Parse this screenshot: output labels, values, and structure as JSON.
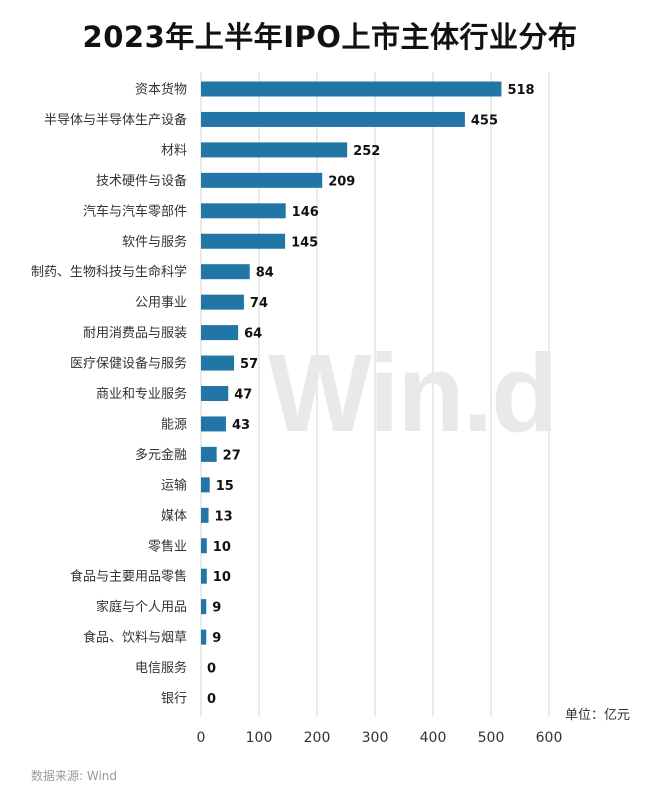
{
  "title": "2023年上半年IPO上市主体行业分布",
  "unit": "单位：亿元",
  "source": "数据来源: Wind",
  "watermark": "Win.d",
  "colors": {
    "bar": "#2276a6",
    "grid": "#d6d6d6",
    "label": "#333333",
    "value": "#111111"
  },
  "chart_data": {
    "type": "bar",
    "orientation": "horizontal",
    "title": "2023年上半年IPO上市主体行业分布",
    "unit": "单位：亿元",
    "categories": [
      "资本货物",
      "半导体与半导体生产设备",
      "材料",
      "技术硬件与设备",
      "汽车与汽车零部件",
      "软件与服务",
      "制药、生物科技与生命科学",
      "公用事业",
      "耐用消费品与服装",
      "医疗保健设备与服务",
      "商业和专业服务",
      "能源",
      "多元金融",
      "运输",
      "媒体",
      "零售业",
      "食品与主要用品零售",
      "家庭与个人用品",
      "食品、饮料与烟草",
      "电信服务",
      "银行"
    ],
    "values": [
      518,
      455,
      252,
      209,
      146,
      145,
      84,
      74,
      64,
      57,
      47,
      43,
      27,
      15,
      13,
      10,
      10,
      9,
      9,
      0,
      0
    ],
    "xlim": [
      0,
      600
    ],
    "xticks": [
      0,
      100,
      200,
      300,
      400,
      500,
      600
    ],
    "grid": true
  }
}
